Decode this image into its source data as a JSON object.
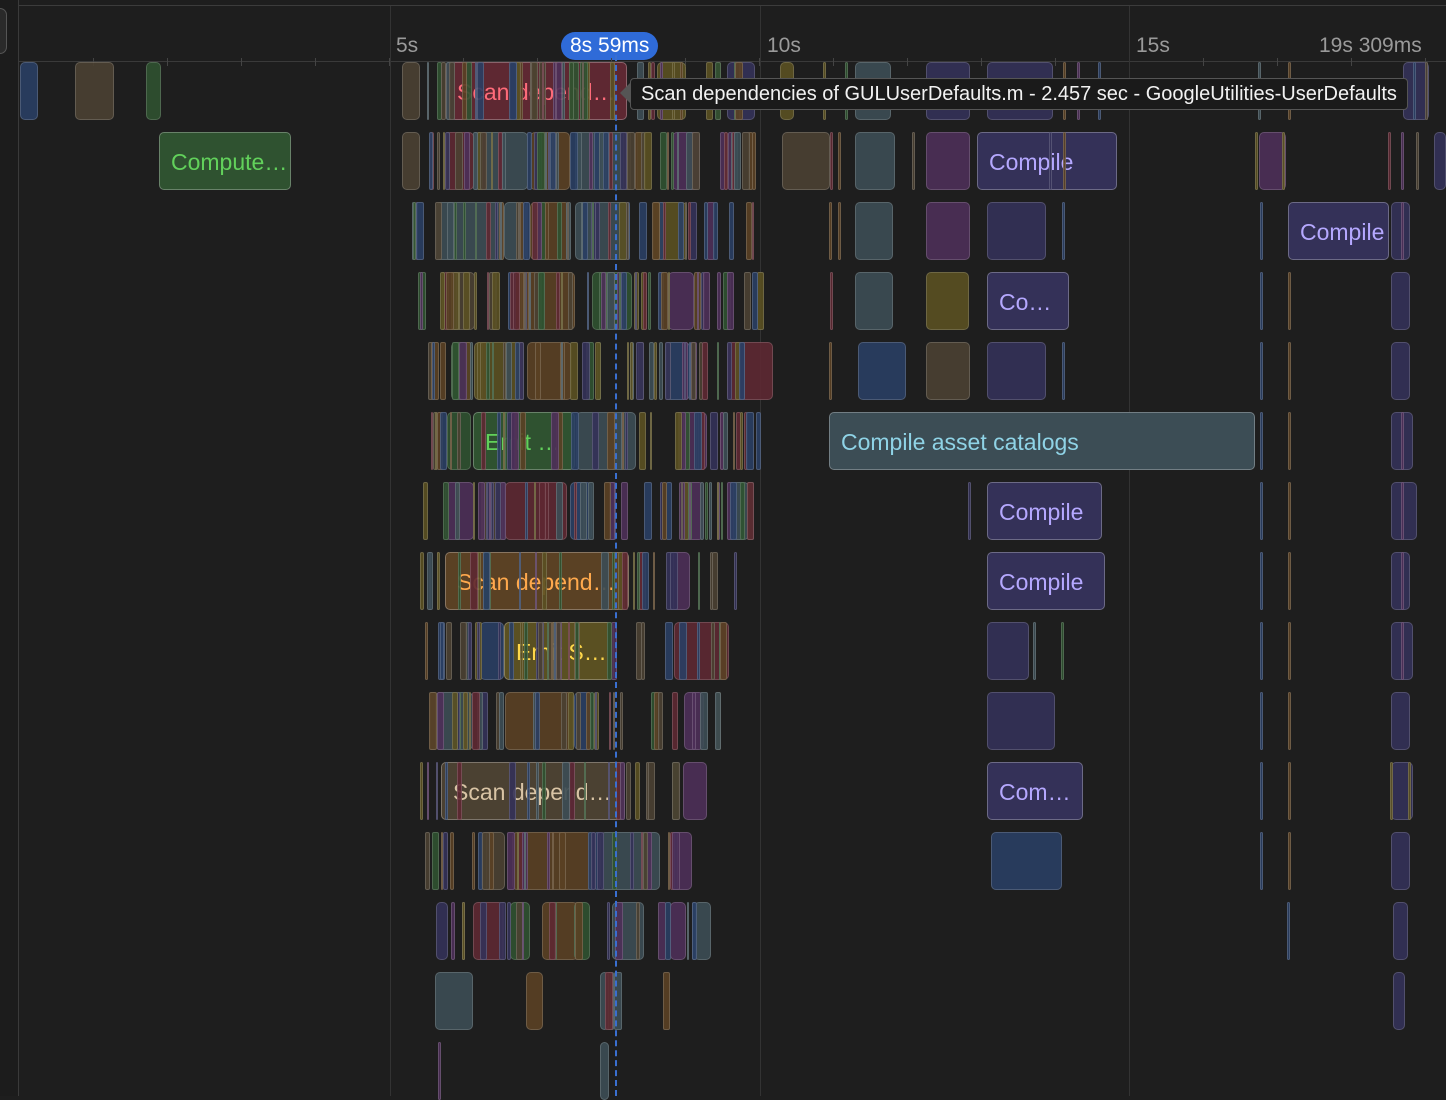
{
  "ruler": {
    "ticks": [
      "5s",
      "10s",
      "15s",
      "19s 309ms"
    ],
    "playhead": "8s 59ms"
  },
  "tooltip": {
    "text": "Scan dependencies of GULUserDefaults.m - 2.457 sec - GoogleUtilities-UserDefaults"
  },
  "tasks": {
    "scan_dep_1": "Scan dependencies of GULUserDefaults.m",
    "compute_1": "Compute dependencies",
    "compile_1": "Compile",
    "compile_2": "Compile",
    "compile_3": "Compile",
    "emit_1": "Emit module",
    "asset_catalogs": "Compile asset catalogs",
    "compile_4": "Compile",
    "scan_dep_2": "Scan dependencies",
    "compile_5": "Compile",
    "emit_swift": "Emit Swift module",
    "scan_dep_3": "Scan dependencies",
    "compile_6": "Compile"
  },
  "colors": {
    "background": "#1e1e1e",
    "playhead": "#2f6bd8",
    "red": "#ff6b7a",
    "green": "#62d15b",
    "purple": "#b5a8ff",
    "teal": "#8fd3e6",
    "orange": "#ffa94d",
    "yellow": "#ffd84a",
    "tan": "#d9c4a5"
  }
}
